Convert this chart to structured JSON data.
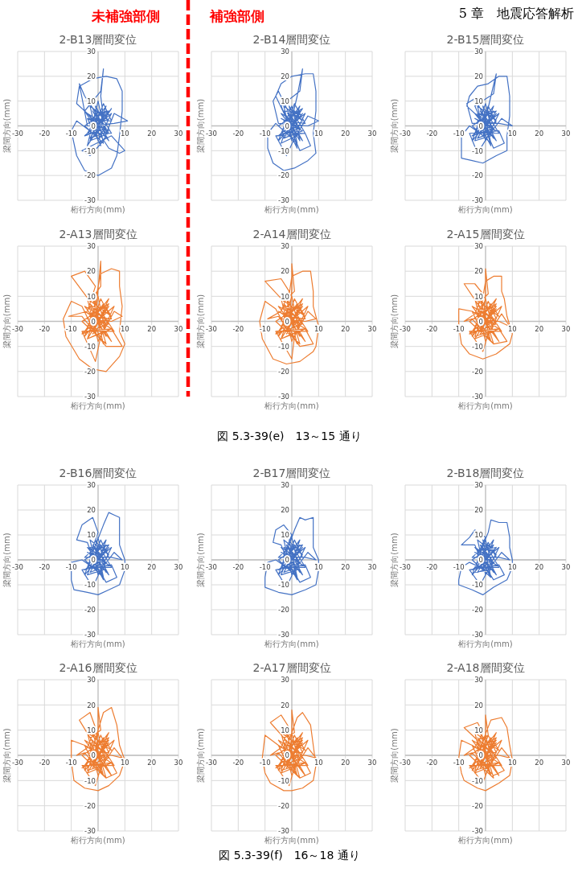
{
  "chart_data": [
    {
      "type": "line",
      "title": "2-B13層間変位",
      "xlabel": "桁行方向(mm)",
      "ylabel": "梁間方向(mm)",
      "xlim": [
        -30,
        30
      ],
      "ylim": [
        -30,
        30
      ],
      "xticks": [
        -30,
        -20,
        -10,
        10,
        20,
        30
      ],
      "yticks": [
        -30,
        -20,
        -10,
        0,
        10,
        20,
        30
      ],
      "grid": true,
      "annotations": [
        "未補強部側"
      ],
      "series": [
        {
          "color": "#4472c4",
          "x": [
            0,
            3,
            -2,
            4,
            -3,
            2,
            5,
            -4,
            1,
            -1,
            4,
            -3,
            -8,
            -10,
            -8,
            -5,
            0,
            5,
            7,
            8,
            9,
            9,
            7,
            3,
            -2,
            -7,
            -8,
            -3,
            3,
            0,
            -4,
            5,
            -2,
            2,
            1,
            2,
            1,
            -5,
            4,
            8,
            10,
            5,
            -6,
            -3,
            2,
            6,
            11,
            6,
            -4,
            -7,
            -5,
            0,
            3,
            -1,
            -4,
            4,
            -3,
            3,
            -5,
            2,
            -1,
            5,
            -4,
            1,
            4,
            -3,
            0,
            5,
            -5,
            3,
            -2,
            4,
            -4,
            2,
            -1,
            3,
            -3,
            1
          ],
          "values": [
            0,
            4,
            7,
            -3,
            -6,
            9,
            2,
            3,
            -8,
            5,
            6,
            -2,
            2,
            -2,
            -12,
            -18,
            -20,
            -17,
            -12,
            -4,
            6,
            14,
            19,
            20,
            19,
            16,
            9,
            4,
            -5,
            10,
            -8,
            7,
            -3,
            3,
            12,
            23,
            14,
            6,
            -9,
            -11,
            -10,
            -4,
            -10,
            -12,
            -6,
            5,
            2,
            1,
            0,
            17,
            12,
            4,
            -2,
            2,
            3,
            -2,
            -5,
            6,
            0,
            -7,
            8,
            -3,
            -3,
            6,
            2,
            8,
            -6,
            5,
            -4,
            -1,
            6,
            -6,
            5,
            1,
            -4,
            8,
            -1,
            0
          ]
        }
      ]
    },
    {
      "type": "line",
      "title": "2-B14層間変位",
      "xlabel": "桁行方向(mm)",
      "ylabel": "梁間方向(mm)",
      "xlim": [
        -30,
        30
      ],
      "ylim": [
        -30,
        30
      ],
      "xticks": [
        -30,
        -20,
        -10,
        10,
        20,
        30
      ],
      "yticks": [
        -30,
        -20,
        -10,
        0,
        10,
        20,
        30
      ],
      "grid": true,
      "annotations": [
        "補強部側"
      ],
      "series": [
        {
          "color": "#4472c4",
          "x": [
            0,
            3,
            -3,
            2,
            -4,
            1,
            5,
            -3,
            2,
            -1,
            4,
            -2,
            -6,
            -9,
            -9,
            -7,
            -3,
            1,
            6,
            9,
            8,
            9,
            9,
            8,
            5,
            0,
            -4,
            -6,
            -2,
            3,
            0,
            -5,
            4,
            -1,
            2,
            4,
            3,
            -4,
            3,
            7,
            5,
            -6,
            -2,
            1,
            6,
            10,
            6,
            -5,
            -7,
            -5,
            -1,
            3,
            0,
            -4,
            4,
            -3,
            3,
            -5,
            2,
            -1,
            5,
            -4,
            1,
            4,
            -3,
            0,
            5,
            -5,
            3,
            -2,
            4,
            -4,
            2,
            -1,
            3,
            -3,
            1
          ],
          "values": [
            0,
            5,
            6,
            -4,
            -7,
            9,
            1,
            2,
            -9,
            4,
            7,
            -3,
            1,
            -3,
            -9,
            -15,
            -18,
            -17,
            -14,
            -11,
            -3,
            6,
            14,
            21,
            21,
            20,
            17,
            12,
            3,
            -6,
            8,
            -6,
            5,
            -2,
            12,
            23,
            14,
            8,
            -10,
            -8,
            -3,
            -4,
            -12,
            -5,
            4,
            2,
            0,
            1,
            10,
            14,
            5,
            -1,
            1,
            3,
            -2,
            -5,
            6,
            0,
            -7,
            8,
            -3,
            -3,
            6,
            2,
            8,
            -6,
            5,
            -4,
            -1,
            6,
            -6,
            5,
            1,
            -4,
            8,
            -1,
            0
          ]
        }
      ]
    },
    {
      "type": "line",
      "title": "2-B15層間変位",
      "xlabel": "桁行方向(mm)",
      "ylabel": "梁間方向(mm)",
      "xlim": [
        -30,
        30
      ],
      "ylim": [
        -30,
        30
      ],
      "xticks": [
        -30,
        -20,
        -10,
        10,
        20,
        30
      ],
      "yticks": [
        -30,
        -20,
        -10,
        0,
        10,
        20,
        30
      ],
      "grid": true,
      "annotations": [
        "5 章　地震応答解析"
      ],
      "series": [
        {
          "color": "#4472c4",
          "x": [
            0,
            3,
            -3,
            2,
            -4,
            1,
            4,
            -3,
            2,
            -1,
            4,
            -2,
            -6,
            -9,
            -9,
            -5,
            -1,
            4,
            8,
            8,
            9,
            9,
            8,
            5,
            1,
            -3,
            -6,
            -7,
            -2,
            3,
            0,
            -5,
            4,
            -1,
            2,
            4,
            3,
            -4,
            3,
            7,
            5,
            -6,
            -3,
            1,
            6,
            10,
            5,
            -5,
            -7,
            -4,
            -1,
            3,
            0,
            -4,
            4,
            -3,
            3,
            -5,
            2,
            -1,
            5,
            -4,
            1,
            4,
            -3,
            0,
            5,
            -5,
            3,
            -2,
            4,
            -4,
            2,
            -1,
            3,
            -3,
            1
          ],
          "values": [
            0,
            4,
            5,
            -4,
            -6,
            8,
            1,
            2,
            -8,
            4,
            6,
            -3,
            0,
            -4,
            -13,
            -14,
            -15,
            -12,
            -10,
            -4,
            4,
            12,
            20,
            20,
            17,
            16,
            12,
            8,
            3,
            -5,
            9,
            -6,
            5,
            -2,
            12,
            21,
            13,
            8,
            -9,
            -7,
            -2,
            -3,
            -11,
            -4,
            3,
            0,
            1,
            1,
            9,
            11,
            5,
            -1,
            1,
            3,
            -2,
            -5,
            6,
            0,
            -7,
            8,
            -3,
            -3,
            6,
            2,
            8,
            -6,
            5,
            -4,
            -1,
            6,
            -6,
            5,
            1,
            -4,
            8,
            -1,
            0
          ]
        }
      ]
    },
    {
      "type": "line",
      "title": "2-A13層間変位",
      "xlabel": "桁行方向(mm)",
      "ylabel": "梁間方向(mm)",
      "xlim": [
        -30,
        30
      ],
      "ylim": [
        -30,
        30
      ],
      "xticks": [
        -30,
        -20,
        -10,
        10,
        20,
        30
      ],
      "yticks": [
        -30,
        -20,
        -10,
        0,
        10,
        20,
        30
      ],
      "grid": true,
      "series": [
        {
          "color": "#ed7d31",
          "x": [
            0,
            3,
            -3,
            2,
            -4,
            1,
            5,
            -3,
            2,
            -1,
            4,
            -2,
            -6,
            -10,
            -13,
            -12,
            -7,
            -2,
            3,
            8,
            10,
            8,
            9,
            8,
            8,
            5,
            1,
            -2,
            3,
            0,
            -5,
            4,
            -1,
            0,
            1,
            1,
            -3,
            -10,
            -5,
            -1,
            -4,
            -11,
            -6,
            3,
            9,
            5,
            -6,
            -1,
            1,
            6,
            9,
            5,
            -4,
            -1,
            3,
            0,
            -5,
            5,
            -4,
            4,
            -6,
            3,
            -2,
            6,
            -5,
            2,
            5,
            -4,
            0,
            6,
            -6,
            4,
            -3,
            5,
            -5,
            3,
            -2,
            4,
            -4,
            1
          ],
          "values": [
            0,
            5,
            6,
            -4,
            -7,
            9,
            1,
            2,
            -9,
            4,
            7,
            -3,
            6,
            8,
            1,
            -6,
            -15,
            -19,
            -20,
            -14,
            -9,
            -4,
            6,
            14,
            20,
            21,
            19,
            3,
            -6,
            10,
            -6,
            6,
            -2,
            13,
            24,
            14,
            8,
            18,
            20,
            14,
            4,
            2,
            2,
            -10,
            -10,
            -3,
            -4,
            -16,
            -6,
            4,
            2,
            0,
            1,
            5,
            -1,
            1,
            4,
            -3,
            -7,
            7,
            0,
            -9,
            9,
            -4,
            -4,
            7,
            2,
            9,
            -8,
            6,
            -5,
            -1,
            7,
            -8,
            6,
            1,
            -5,
            9,
            -2,
            0
          ]
        }
      ]
    },
    {
      "type": "line",
      "title": "2-A14層間変位",
      "xlabel": "桁行方向(mm)",
      "ylabel": "梁間方向(mm)",
      "xlim": [
        -30,
        30
      ],
      "ylim": [
        -30,
        30
      ],
      "xticks": [
        -30,
        -20,
        -10,
        10,
        20,
        30
      ],
      "yticks": [
        -30,
        -20,
        -10,
        0,
        10,
        20,
        30
      ],
      "grid": true,
      "annotations": [
        "図 5.3-39(e)　13～15 通り"
      ],
      "series": [
        {
          "color": "#ed7d31",
          "x": [
            0,
            3,
            -3,
            2,
            -4,
            1,
            5,
            -3,
            2,
            -1,
            4,
            -2,
            -6,
            -10,
            -12,
            -11,
            -7,
            -2,
            3,
            8,
            9,
            10,
            8,
            8,
            7,
            4,
            0,
            -2,
            3,
            0,
            -5,
            4,
            -1,
            0,
            0,
            1,
            -3,
            -10,
            -4,
            -1,
            -4,
            -9,
            -5,
            3,
            8,
            5,
            -6,
            0,
            1,
            6,
            9,
            5,
            -4,
            -1,
            3,
            0,
            -5,
            5,
            -4,
            4,
            -6,
            3,
            -2,
            6,
            -5,
            2,
            5,
            -4,
            0,
            6,
            -6,
            4,
            -3,
            5,
            -5,
            3,
            -2,
            4,
            -4,
            1
          ],
          "values": [
            0,
            5,
            6,
            -4,
            -7,
            9,
            1,
            2,
            -9,
            4,
            7,
            -3,
            5,
            8,
            0,
            -7,
            -15,
            -17,
            -16,
            -12,
            -10,
            -2,
            6,
            12,
            20,
            20,
            18,
            3,
            -6,
            10,
            -6,
            6,
            -2,
            13,
            23,
            12,
            8,
            16,
            17,
            12,
            4,
            1,
            2,
            -10,
            -9,
            -3,
            -4,
            -15,
            -6,
            4,
            1,
            0,
            1,
            5,
            -1,
            1,
            4,
            -3,
            -7,
            7,
            0,
            -9,
            9,
            -4,
            -4,
            7,
            2,
            9,
            -8,
            6,
            -5,
            -1,
            7,
            -8,
            6,
            1,
            -5,
            9,
            -2,
            0
          ]
        }
      ]
    },
    {
      "type": "line",
      "title": "2-A15層間変位",
      "xlabel": "桁行方向(mm)",
      "ylabel": "梁間方向(mm)",
      "xlim": [
        -30,
        30
      ],
      "ylim": [
        -30,
        30
      ],
      "xticks": [
        -30,
        -20,
        -10,
        10,
        20,
        30
      ],
      "yticks": [
        -30,
        -20,
        -10,
        0,
        10,
        20,
        30
      ],
      "grid": true,
      "series": [
        {
          "color": "#ed7d31",
          "x": [
            0,
            3,
            -3,
            2,
            -4,
            1,
            4,
            -3,
            2,
            -1,
            4,
            -2,
            -5,
            -10,
            -10,
            -9,
            -6,
            -1,
            4,
            9,
            10,
            8,
            7,
            6,
            6,
            3,
            0,
            -2,
            3,
            0,
            -5,
            4,
            -1,
            0,
            0,
            1,
            -3,
            -8,
            -4,
            -1,
            -4,
            -8,
            -5,
            3,
            8,
            5,
            -6,
            -1,
            1,
            6,
            9,
            5,
            -4,
            -1,
            3,
            0,
            -5,
            5,
            -4,
            4,
            -6,
            3,
            -2,
            6,
            -5,
            2,
            5,
            -4,
            0,
            6,
            -6,
            4,
            -3,
            5,
            -5,
            3,
            -2,
            4,
            -4,
            1
          ],
          "values": [
            0,
            4,
            5,
            -4,
            -6,
            8,
            1,
            2,
            -8,
            4,
            6,
            -3,
            4,
            5,
            -2,
            -9,
            -13,
            -15,
            -13,
            -9,
            -5,
            2,
            9,
            12,
            18,
            18,
            16,
            3,
            -5,
            9,
            -6,
            5,
            -2,
            11,
            21,
            11,
            7,
            15,
            15,
            11,
            3,
            0,
            1,
            -9,
            -8,
            -3,
            -4,
            -12,
            -5,
            3,
            -2,
            0,
            1,
            5,
            -1,
            1,
            4,
            -3,
            -7,
            7,
            0,
            -9,
            9,
            -4,
            -4,
            7,
            2,
            9,
            -8,
            6,
            -5,
            -1,
            7,
            -8,
            6,
            1,
            -5,
            9,
            -2,
            0
          ]
        }
      ]
    },
    {
      "type": "line",
      "title": "2-B16層間変位",
      "xlabel": "桁行方向(mm)",
      "ylabel": "梁間方向(mm)",
      "xlim": [
        -30,
        30
      ],
      "ylim": [
        -30,
        30
      ],
      "xticks": [
        -30,
        -20,
        -10,
        10,
        20,
        30
      ],
      "yticks": [
        -30,
        -20,
        -10,
        0,
        10,
        20,
        30
      ],
      "grid": true,
      "series": [
        {
          "color": "#4472c4",
          "x": [
            0,
            3,
            -3,
            2,
            -4,
            1,
            4,
            -3,
            2,
            -1,
            4,
            -2,
            -6,
            -10,
            -10,
            -9,
            -4,
            0,
            4,
            8,
            10,
            10,
            8,
            8,
            8,
            6,
            4,
            2,
            -2,
            3,
            0,
            -5,
            4,
            -1,
            -4,
            -8,
            -6,
            -2,
            0,
            -3,
            3,
            7,
            5,
            -6,
            -2,
            1,
            6,
            9,
            5,
            -5,
            -1,
            3,
            0,
            -4,
            4,
            -3,
            3,
            -5,
            2,
            -1,
            5,
            -4,
            1,
            4,
            -3,
            0,
            5,
            -5,
            3,
            -2,
            4,
            -4,
            2,
            -1,
            3,
            -3,
            1
          ],
          "values": [
            0,
            4,
            5,
            -4,
            -6,
            8,
            1,
            2,
            -8,
            4,
            6,
            -3,
            0,
            -1,
            -8,
            -12,
            -13,
            -14,
            -12,
            -10,
            -4,
            0,
            6,
            12,
            17,
            18,
            19,
            14,
            3,
            -5,
            9,
            -6,
            5,
            -2,
            7,
            8,
            14,
            17,
            11,
            2,
            -9,
            -7,
            -2,
            -4,
            -11,
            -4,
            3,
            0,
            1,
            1,
            5,
            -1,
            1,
            3,
            -2,
            -5,
            6,
            0,
            -7,
            8,
            -3,
            -3,
            6,
            2,
            8,
            -6,
            5,
            -4,
            -1,
            6,
            -6,
            5,
            1,
            -4,
            8,
            -1,
            0
          ]
        }
      ]
    },
    {
      "type": "line",
      "title": "2-B17層間変位",
      "xlabel": "桁行方向(mm)",
      "ylabel": "梁間方向(mm)",
      "xlim": [
        -30,
        30
      ],
      "ylim": [
        -30,
        30
      ],
      "xticks": [
        -30,
        -20,
        -10,
        10,
        20,
        30
      ],
      "yticks": [
        -30,
        -20,
        -10,
        0,
        10,
        20,
        30
      ],
      "grid": true,
      "series": [
        {
          "color": "#4472c4",
          "x": [
            0,
            3,
            -3,
            2,
            -4,
            1,
            4,
            -3,
            2,
            -1,
            4,
            -2,
            -6,
            -9,
            -10,
            -10,
            -5,
            0,
            5,
            9,
            10,
            10,
            8,
            8,
            8,
            5,
            3,
            1,
            -2,
            3,
            0,
            -5,
            4,
            -1,
            -4,
            -7,
            -6,
            -3,
            0,
            -3,
            3,
            7,
            5,
            -6,
            -2,
            1,
            6,
            9,
            5,
            -5,
            -1,
            3,
            0,
            -4,
            4,
            -3,
            3,
            -5,
            2,
            -1,
            5,
            -4,
            1,
            4,
            -3,
            0,
            5,
            -5,
            3,
            -2,
            4,
            -4,
            2,
            -1,
            3,
            -3,
            1
          ],
          "values": [
            0,
            4,
            5,
            -4,
            -6,
            8,
            1,
            2,
            -8,
            4,
            6,
            -3,
            0,
            -1,
            -7,
            -11,
            -13,
            -14,
            -12,
            -10,
            -4,
            0,
            5,
            11,
            17,
            16,
            17,
            12,
            3,
            -5,
            9,
            -6,
            5,
            -2,
            6,
            7,
            12,
            14,
            10,
            2,
            -9,
            -7,
            -2,
            -4,
            -11,
            -4,
            3,
            0,
            1,
            1,
            5,
            -1,
            1,
            3,
            -2,
            -5,
            6,
            0,
            -7,
            8,
            -3,
            -3,
            6,
            2,
            8,
            -6,
            5,
            -4,
            -1,
            6,
            -6,
            5,
            1,
            -4,
            8,
            -1,
            0
          ]
        }
      ]
    },
    {
      "type": "line",
      "title": "2-B18層間変位",
      "xlabel": "桁行方向(mm)",
      "ylabel": "梁間方向(mm)",
      "xlim": [
        -30,
        30
      ],
      "ylim": [
        -30,
        30
      ],
      "xticks": [
        -30,
        -20,
        -10,
        10,
        20,
        30
      ],
      "yticks": [
        -30,
        -20,
        -10,
        0,
        10,
        20,
        30
      ],
      "grid": true,
      "series": [
        {
          "color": "#4472c4",
          "x": [
            0,
            3,
            -3,
            2,
            -4,
            1,
            4,
            -3,
            2,
            -1,
            4,
            -2,
            -6,
            -9,
            -10,
            -10,
            -5,
            -1,
            3,
            8,
            10,
            10,
            9,
            9,
            8,
            5,
            2,
            1,
            -2,
            3,
            0,
            -5,
            4,
            -1,
            -4,
            -7,
            -9,
            -6,
            -4,
            0,
            -3,
            3,
            7,
            5,
            -6,
            -2,
            1,
            6,
            9,
            5,
            -5,
            -1,
            3,
            0,
            -4,
            4,
            -3,
            3,
            -5,
            2,
            -1,
            5,
            -4,
            1,
            4,
            -3,
            0,
            5,
            -5,
            3,
            -2,
            4,
            -4,
            2,
            -1,
            3,
            -3,
            1
          ],
          "values": [
            0,
            4,
            4,
            -4,
            -5,
            7,
            1,
            2,
            -7,
            4,
            5,
            -3,
            -1,
            -3,
            -8,
            -10,
            -12,
            -14,
            -11,
            -8,
            -3,
            0,
            5,
            9,
            15,
            15,
            16,
            11,
            3,
            -5,
            8,
            -6,
            5,
            -2,
            6,
            6,
            6,
            9,
            12,
            9,
            2,
            -8,
            -6,
            -2,
            -4,
            -10,
            -4,
            3,
            0,
            1,
            1,
            5,
            -1,
            1,
            3,
            -2,
            -5,
            6,
            0,
            -7,
            8,
            -3,
            -3,
            6,
            2,
            8,
            -6,
            5,
            -4,
            -1,
            6,
            -6,
            5,
            1,
            -4,
            8,
            -1,
            0
          ]
        }
      ]
    },
    {
      "type": "line",
      "title": "2-A16層間変位",
      "xlabel": "桁行方向(mm)",
      "ylabel": "梁間方向(mm)",
      "xlim": [
        -30,
        30
      ],
      "ylim": [
        -30,
        30
      ],
      "xticks": [
        -30,
        -20,
        -10,
        10,
        20,
        30
      ],
      "yticks": [
        -30,
        -20,
        -10,
        0,
        10,
        20,
        30
      ],
      "grid": true,
      "series": [
        {
          "color": "#ed7d31",
          "x": [
            0,
            3,
            -3,
            2,
            -4,
            1,
            4,
            -3,
            2,
            -1,
            4,
            -2,
            -5,
            -10,
            -10,
            -9,
            -5,
            0,
            4,
            8,
            10,
            8,
            7,
            5,
            2,
            -2,
            3,
            0,
            -5,
            4,
            -1,
            0,
            0,
            1,
            -3,
            -7,
            -3,
            -1,
            -4,
            -8,
            -5,
            3,
            7,
            5,
            -6,
            -1,
            1,
            6,
            9,
            5,
            -4,
            -1,
            3,
            0,
            -5,
            5,
            -4,
            4,
            -6,
            3,
            -2,
            6,
            -5,
            2,
            5,
            -4,
            0,
            6,
            -6,
            4,
            -3,
            5,
            -5,
            3,
            -2,
            4,
            -4,
            1
          ],
          "values": [
            0,
            4,
            5,
            -4,
            -6,
            8,
            1,
            2,
            -8,
            4,
            6,
            -3,
            4,
            6,
            -2,
            -10,
            -13,
            -14,
            -12,
            -8,
            -2,
            4,
            12,
            19,
            17,
            3,
            -5,
            9,
            -6,
            5,
            -2,
            10,
            19,
            10,
            7,
            14,
            17,
            11,
            3,
            0,
            1,
            -9,
            -7,
            -3,
            -4,
            -12,
            -5,
            3,
            -1,
            0,
            1,
            5,
            -1,
            1,
            4,
            -3,
            -7,
            7,
            0,
            -9,
            9,
            -4,
            -4,
            7,
            2,
            9,
            -8,
            6,
            -5,
            -1,
            7,
            -8,
            6,
            1,
            -5,
            9,
            -2,
            0
          ]
        }
      ]
    },
    {
      "type": "line",
      "title": "2-A17層間変位",
      "xlabel": "桁行方向(mm)",
      "ylabel": "梁間方向(mm)",
      "xlim": [
        -30,
        30
      ],
      "ylim": [
        -30,
        30
      ],
      "xticks": [
        -30,
        -20,
        -10,
        10,
        20,
        30
      ],
      "yticks": [
        -30,
        -20,
        -10,
        0,
        10,
        20,
        30
      ],
      "grid": true,
      "annotations": [
        "図 5.3-39(f)　16～18 通り"
      ],
      "series": [
        {
          "color": "#ed7d31",
          "x": [
            0,
            3,
            -3,
            2,
            -4,
            1,
            4,
            -3,
            2,
            -1,
            4,
            -2,
            -5,
            -10,
            -11,
            -10,
            -8,
            -3,
            0,
            4,
            8,
            9,
            8,
            7,
            4,
            2,
            -2,
            3,
            0,
            -5,
            4,
            -1,
            0,
            0,
            1,
            -3,
            -8,
            -4,
            -1,
            -4,
            -8,
            -5,
            3,
            7,
            5,
            -6,
            -1,
            1,
            6,
            9,
            5,
            -4,
            -1,
            3,
            0,
            -5,
            5,
            -4,
            4,
            -6,
            3,
            -2,
            6,
            -5,
            2,
            5,
            -4,
            0,
            6,
            -6,
            4,
            -3,
            5,
            -5,
            3,
            -2,
            4,
            -4,
            1
          ],
          "values": [
            0,
            4,
            5,
            -4,
            -6,
            8,
            1,
            2,
            -8,
            4,
            6,
            -3,
            4,
            8,
            -1,
            -7,
            -11,
            -14,
            -14,
            -13,
            -10,
            -4,
            4,
            12,
            17,
            15,
            3,
            -5,
            9,
            -6,
            5,
            -2,
            9,
            18,
            9,
            7,
            13,
            16,
            11,
            3,
            0,
            1,
            -9,
            -7,
            -3,
            -4,
            -12,
            -5,
            3,
            -1,
            0,
            1,
            5,
            -1,
            1,
            4,
            -3,
            -7,
            7,
            0,
            -9,
            9,
            -4,
            -4,
            7,
            2,
            9,
            -8,
            6,
            -5,
            -1,
            7,
            -8,
            6,
            1,
            -5,
            9,
            -2,
            0
          ]
        }
      ]
    },
    {
      "type": "line",
      "title": "2-A18層間変位",
      "xlabel": "桁行方向(mm)",
      "ylabel": "梁間方向(mm)",
      "xlim": [
        -30,
        30
      ],
      "ylim": [
        -30,
        30
      ],
      "xticks": [
        -30,
        -20,
        -10,
        10,
        20,
        30
      ],
      "yticks": [
        -30,
        -20,
        -10,
        0,
        10,
        20,
        30
      ],
      "grid": true,
      "series": [
        {
          "color": "#ed7d31",
          "x": [
            0,
            3,
            -3,
            2,
            -4,
            1,
            4,
            -3,
            2,
            -1,
            4,
            -2,
            -5,
            -9,
            -10,
            -9,
            -8,
            -3,
            0,
            5,
            9,
            10,
            9,
            8,
            6,
            2,
            -2,
            3,
            0,
            -5,
            4,
            -1,
            0,
            0,
            1,
            -3,
            -8,
            -3,
            -1,
            -4,
            -8,
            -5,
            3,
            7,
            5,
            -6,
            -1,
            1,
            6,
            9,
            5,
            -4,
            -1,
            3,
            0,
            -5,
            5,
            -4,
            4,
            -6,
            3,
            -2,
            6,
            -5,
            2,
            5,
            -4,
            0,
            6,
            -6,
            4,
            -3,
            5,
            -5,
            3,
            -2,
            4,
            -4,
            1
          ],
          "values": [
            0,
            4,
            5,
            -4,
            -6,
            8,
            1,
            2,
            -8,
            4,
            6,
            -3,
            4,
            6,
            -1,
            -7,
            -10,
            -13,
            -14,
            -11,
            -8,
            -2,
            4,
            11,
            15,
            14,
            3,
            -5,
            8,
            -6,
            5,
            -2,
            8,
            16,
            8,
            6,
            11,
            13,
            9,
            3,
            0,
            1,
            -8,
            -6,
            -3,
            -4,
            -11,
            -5,
            3,
            -1,
            0,
            1,
            5,
            -1,
            1,
            4,
            -3,
            -7,
            7,
            0,
            -9,
            9,
            -4,
            -4,
            7,
            2,
            9,
            -8,
            6,
            -5,
            -1,
            7,
            -8,
            6,
            1,
            -5,
            9,
            -2,
            0
          ]
        }
      ]
    }
  ]
}
